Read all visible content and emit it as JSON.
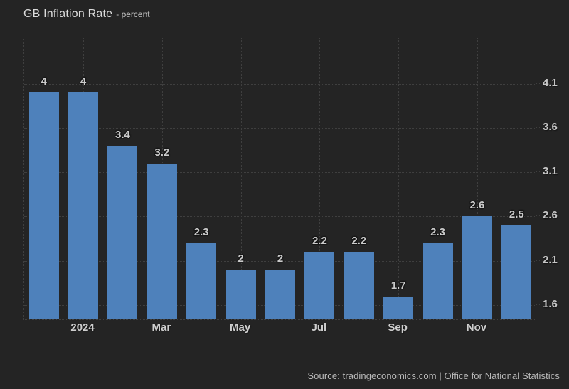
{
  "header": {
    "title": "GB Inflation Rate",
    "subtitle": "- percent"
  },
  "footer": {
    "source_text": "Source: tradingeconomics.com | Office for National Statistics"
  },
  "colors": {
    "background": "#242424",
    "bar": "#4e81bb",
    "grid": "#3f3f3f",
    "axis": "#4d4d4d",
    "value_label": "#cbcbcb",
    "tick_label": "#c6c6c6"
  },
  "chart_data": {
    "type": "bar",
    "title": "GB Inflation Rate",
    "ylabel": "percent",
    "values": [
      4,
      4,
      3.4,
      3.2,
      2.3,
      2,
      2,
      2.2,
      2.2,
      1.7,
      2.3,
      2.6,
      2.5
    ],
    "bar_labels": [
      "4",
      "4",
      "3.4",
      "3.2",
      "2.3",
      "2",
      "2",
      "2.2",
      "2.2",
      "1.7",
      "2.3",
      "2.6",
      "2.5"
    ],
    "x_ticks": [
      {
        "label": "2024",
        "slot": 1
      },
      {
        "label": "Mar",
        "slot": 3
      },
      {
        "label": "May",
        "slot": 5
      },
      {
        "label": "Jul",
        "slot": 7
      },
      {
        "label": "Sep",
        "slot": 9
      },
      {
        "label": "Nov",
        "slot": 11
      }
    ],
    "y_ticks": [
      "4.1",
      "3.6",
      "3.1",
      "2.6",
      "2.1",
      "1.6"
    ],
    "ylim": [
      1.44,
      4.61
    ],
    "grid": "dotted",
    "legend": "none",
    "y_axis_side": "right"
  }
}
